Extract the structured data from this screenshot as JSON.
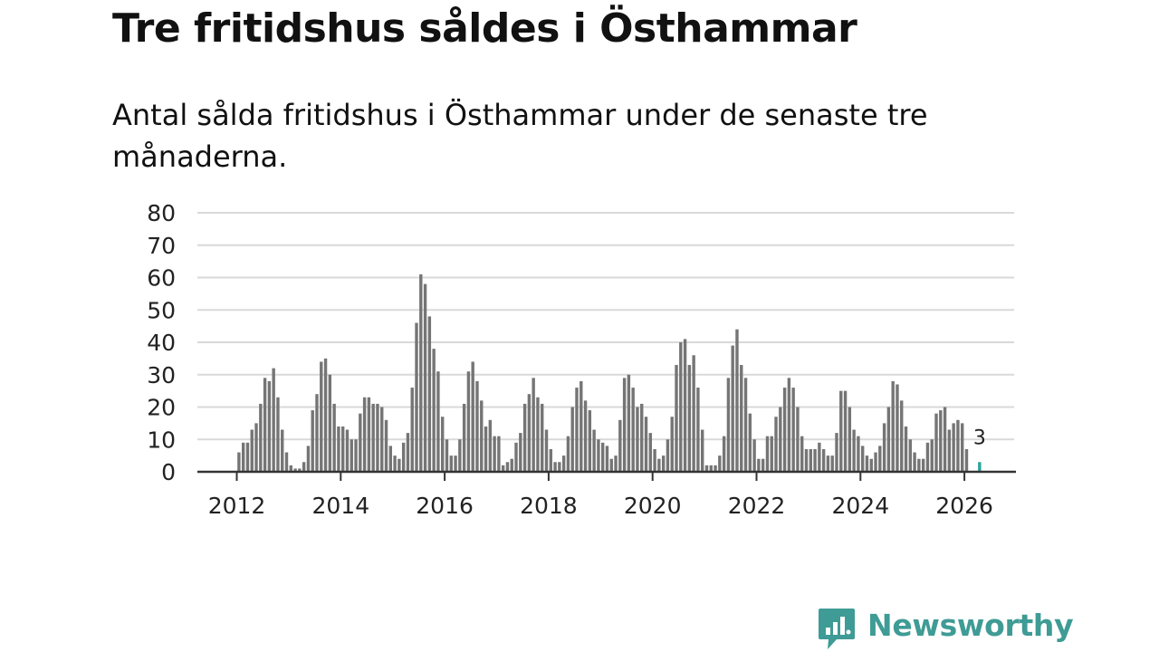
{
  "title": "Tre fritidshus såldes i Östhammar",
  "subtitle": "Antal sålda fritidshus i Östhammar under de senaste tre månaderna.",
  "brand": {
    "name": "Newsworthy",
    "color": "#3f9b95",
    "icon": "newsworthy-logo-icon"
  },
  "colors": {
    "bar": "#757575",
    "highlight": "#2aa39d",
    "grid": "#d9d9d9",
    "axis": "#333333"
  },
  "chart_data": {
    "type": "bar",
    "title": "Tre fritidshus såldes i Östhammar",
    "xlabel": "",
    "ylabel": "",
    "ylim": [
      0,
      80
    ],
    "yticks": [
      0,
      10,
      20,
      30,
      40,
      50,
      60,
      70,
      80
    ],
    "xticks": [
      "2012",
      "2014",
      "2016",
      "2018",
      "2020",
      "2022",
      "2024",
      "2026"
    ],
    "grid": true,
    "start_year": 2012,
    "start_month": 1,
    "values": [
      6,
      9,
      9,
      13,
      15,
      21,
      29,
      28,
      32,
      23,
      13,
      6,
      2,
      1,
      1,
      3,
      8,
      19,
      24,
      34,
      35,
      30,
      21,
      14,
      14,
      13,
      10,
      10,
      18,
      23,
      23,
      21,
      21,
      20,
      16,
      8,
      5,
      4,
      9,
      12,
      26,
      46,
      61,
      58,
      48,
      38,
      31,
      17,
      10,
      5,
      5,
      10,
      21,
      31,
      34,
      28,
      22,
      14,
      16,
      11,
      11,
      2,
      3,
      4,
      9,
      12,
      21,
      24,
      29,
      23,
      21,
      13,
      7,
      3,
      3,
      5,
      11,
      20,
      26,
      28,
      22,
      19,
      13,
      10,
      9,
      8,
      4,
      5,
      16,
      29,
      30,
      26,
      20,
      21,
      17,
      12,
      7,
      4,
      5,
      10,
      17,
      33,
      40,
      41,
      33,
      36,
      26,
      13,
      2,
      2,
      2,
      5,
      11,
      29,
      39,
      44,
      33,
      29,
      18,
      10,
      4,
      4,
      11,
      11,
      17,
      20,
      26,
      29,
      26,
      20,
      11,
      7,
      7,
      7,
      9,
      7,
      5,
      5,
      12,
      25,
      25,
      20,
      13,
      11,
      8,
      5,
      4,
      6,
      8,
      15,
      20,
      28,
      27,
      22,
      14,
      10,
      6,
      4,
      4,
      9,
      10,
      18,
      19,
      20,
      13,
      15,
      16,
      15,
      7,
      0,
      0,
      3
    ],
    "highlight": {
      "index": 171,
      "value": 3,
      "label": "3"
    }
  }
}
